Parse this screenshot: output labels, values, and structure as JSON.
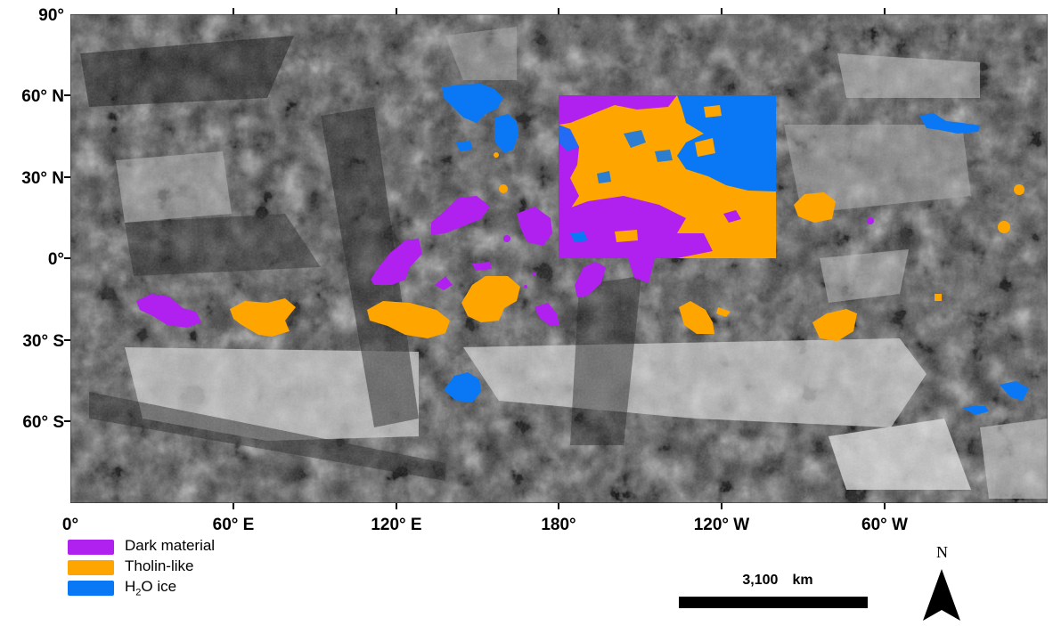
{
  "map": {
    "lat_labels": [
      "90°",
      "60° N",
      "30° N",
      "0°",
      "30° S",
      "60° S"
    ],
    "lon_labels": [
      "0°",
      "60° E",
      "120° E",
      "180°",
      "120° W",
      "60° W"
    ],
    "units": [
      {
        "name": "Dark material",
        "color": "#b020ee"
      },
      {
        "name": "Tholin-like",
        "color": "#ffa500"
      },
      {
        "name": "H2O ice",
        "color": "#0a78f5"
      }
    ],
    "basemap": "grayscale mosaic"
  },
  "legend": {
    "items": [
      {
        "label": "Dark material",
        "color": "#b020ee"
      },
      {
        "label": "Tholin-like",
        "color": "#ffa500"
      },
      {
        "label_main": "H",
        "label_sub": "2",
        "label_rest": "O ice",
        "color": "#0a78f5"
      }
    ]
  },
  "scalebar": {
    "value": "3,100",
    "unit": "km"
  },
  "north_arrow": {
    "label": "N"
  }
}
